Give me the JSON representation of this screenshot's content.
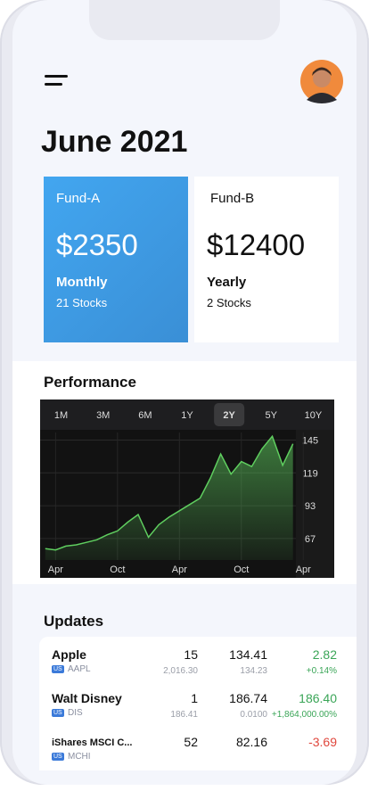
{
  "header": {
    "title": "June 2021"
  },
  "funds": [
    {
      "name": "Fund-A",
      "amount": "$2350",
      "period": "Monthly",
      "stocks": "21 Stocks"
    },
    {
      "name": "Fund-B",
      "amount": "$12400",
      "period": "Yearly",
      "stocks": "2 Stocks"
    }
  ],
  "performance": {
    "title": "Performance",
    "ranges": [
      "1M",
      "3M",
      "6M",
      "1Y",
      "2Y",
      "5Y",
      "10Y"
    ],
    "selected_range": "2Y",
    "chart_data": {
      "type": "area",
      "x": [
        -1,
        0,
        1,
        2,
        3,
        4,
        5,
        6,
        7,
        8,
        9,
        10,
        11,
        12,
        13,
        14,
        15,
        16,
        17,
        18,
        19,
        20,
        21,
        22,
        23
      ],
      "values": [
        59,
        58,
        61,
        62,
        64,
        66,
        70,
        73,
        80,
        86,
        68,
        78,
        84,
        89,
        94,
        99,
        115,
        134,
        118,
        128,
        124,
        138,
        148,
        125,
        142
      ],
      "color": "#5fce5f",
      "xlim": [
        -1.5,
        27
      ],
      "ylim": [
        50,
        151
      ],
      "yticks": [
        67,
        93,
        119,
        145
      ],
      "xticks": [
        {
          "value": 0,
          "label": "Apr"
        },
        {
          "value": 6,
          "label": "Oct"
        },
        {
          "value": 12,
          "label": "Apr"
        },
        {
          "value": 18,
          "label": "Oct"
        },
        {
          "value": 24,
          "label": "Apr"
        }
      ],
      "grid": true
    }
  },
  "updates": {
    "title": "Updates",
    "rows": [
      {
        "name": "Apple",
        "quantity": "15",
        "price": "134.41",
        "change": "2.82",
        "badge": "US",
        "ticker": "AAPL",
        "value": "2,016.30",
        "avg_price": "134.23",
        "change_pct": "+0.14%",
        "change_color": "#3aa557"
      },
      {
        "name": "Walt Disney",
        "quantity": "1",
        "price": "186.74",
        "change": "186.40",
        "badge": "US",
        "ticker": "DIS",
        "value": "186.41",
        "avg_price": "0.0100",
        "change_pct": "+1,864,000.00%",
        "change_color": "#3aa557"
      },
      {
        "name": "iShares MSCI C...",
        "quantity": "52",
        "price": "82.16",
        "change": "-3.69",
        "badge": "US",
        "ticker": "MCHI",
        "change_color": "#e0473d"
      }
    ]
  }
}
